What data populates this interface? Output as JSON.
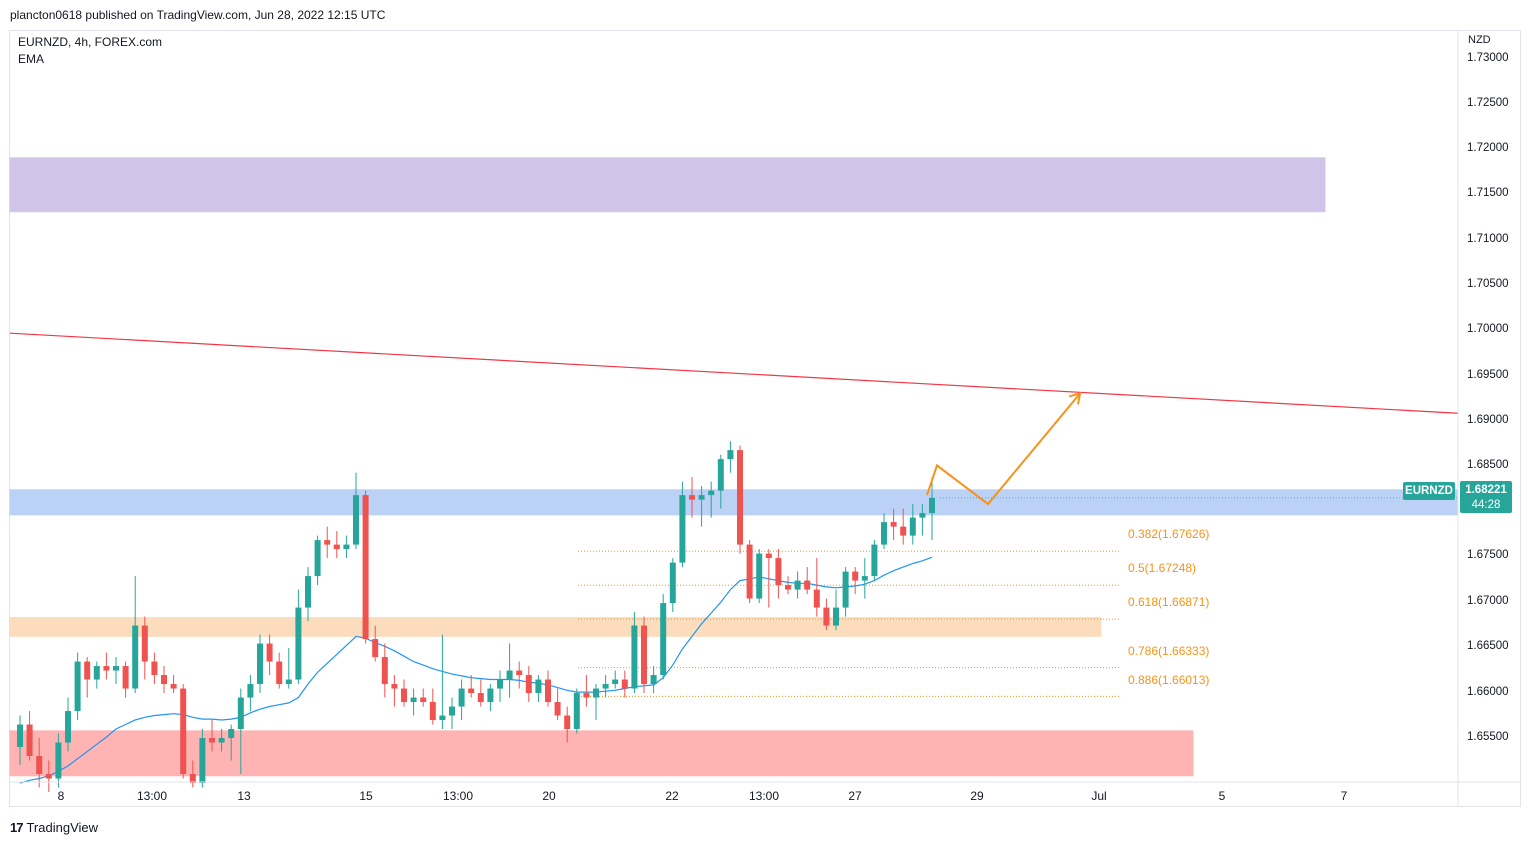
{
  "header": {
    "publisher_line": "plancton0618 published on TradingView.com, Jun 28, 2022 12:15 UTC"
  },
  "legend": {
    "symbol_line": "EURNZD, 4h, FOREX.com",
    "indicator": "EMA"
  },
  "price_axis": {
    "currency": "NZD",
    "ticks": [
      "1.73000",
      "1.72500",
      "1.72000",
      "1.71500",
      "1.71000",
      "1.70500",
      "1.70000",
      "1.69500",
      "1.69000",
      "1.68500",
      "1.67500",
      "1.67000",
      "1.66500",
      "1.66000",
      "1.65500"
    ]
  },
  "time_axis": {
    "ticks": [
      "8",
      "13:00",
      "13",
      "15",
      "13:00",
      "20",
      "22",
      "13:00",
      "27",
      "29",
      "Jul",
      "5",
      "7"
    ]
  },
  "current_price": {
    "symbol": "EURNZD",
    "price": "1.68221",
    "countdown": "44:28",
    "color": "#26a69a"
  },
  "fibonacci": {
    "color": "#f7931a",
    "labels": [
      "0.382(1.67626)",
      "0.5(1.67248)",
      "0.618(1.66871)",
      "0.786(1.66333)",
      "0.886(1.66013)"
    ]
  },
  "colors": {
    "bull": "#26a69a",
    "bear": "#ef5350",
    "ema": "#2196f3",
    "trendline": "#f23645",
    "projection": "#f7931a",
    "zone_purple": "#d1c4e9",
    "zone_blue": "#bbd1f5",
    "zone_orange": "#fbdcbc",
    "zone_red": "#ffb3b3"
  },
  "footer": {
    "brand": "TradingView"
  },
  "chart_data": {
    "type": "candlestick",
    "symbol": "EURNZD",
    "timeframe": "4h",
    "ylim": [
      1.6505,
      1.7312
    ],
    "grid": false,
    "series": [
      {
        "ohlc": [
          [
            1.6545,
            1.658,
            1.6525,
            1.657
          ],
          [
            1.657,
            1.6585,
            1.653,
            1.6535
          ],
          [
            1.6535,
            1.6555,
            1.65,
            1.6515
          ],
          [
            1.6515,
            1.653,
            1.6495,
            1.651
          ],
          [
            1.651,
            1.656,
            1.65,
            1.655
          ],
          [
            1.655,
            1.66,
            1.654,
            1.6585
          ],
          [
            1.6585,
            1.665,
            1.6575,
            1.664
          ],
          [
            1.664,
            1.6645,
            1.66,
            1.662
          ],
          [
            1.662,
            1.664,
            1.661,
            1.6635
          ],
          [
            1.6635,
            1.665,
            1.662,
            1.663
          ],
          [
            1.663,
            1.6645,
            1.6615,
            1.6635
          ],
          [
            1.6635,
            1.664,
            1.66,
            1.661
          ],
          [
            1.661,
            1.6735,
            1.6605,
            1.668
          ],
          [
            1.668,
            1.669,
            1.662,
            1.664
          ],
          [
            1.664,
            1.665,
            1.6615,
            1.6625
          ],
          [
            1.6625,
            1.6635,
            1.6605,
            1.6615
          ],
          [
            1.6615,
            1.6625,
            1.6605,
            1.661
          ],
          [
            1.661,
            1.6615,
            1.651,
            1.6515
          ],
          [
            1.6515,
            1.653,
            1.65,
            1.6505
          ],
          [
            1.6505,
            1.6565,
            1.65,
            1.6555
          ],
          [
            1.6555,
            1.6575,
            1.654,
            1.655
          ],
          [
            1.655,
            1.6565,
            1.654,
            1.6555
          ],
          [
            1.6555,
            1.657,
            1.653,
            1.6565
          ],
          [
            1.6565,
            1.661,
            1.6515,
            1.66
          ],
          [
            1.66,
            1.6625,
            1.6585,
            1.6615
          ],
          [
            1.6615,
            1.667,
            1.6605,
            1.666
          ],
          [
            1.666,
            1.667,
            1.6625,
            1.664
          ],
          [
            1.664,
            1.665,
            1.661,
            1.6615
          ],
          [
            1.6615,
            1.6655,
            1.661,
            1.662
          ],
          [
            1.662,
            1.672,
            1.6615,
            1.67
          ],
          [
            1.67,
            1.6745,
            1.6685,
            1.6735
          ],
          [
            1.6735,
            1.678,
            1.6725,
            1.6775
          ],
          [
            1.6775,
            1.679,
            1.6755,
            1.677
          ],
          [
            1.677,
            1.6785,
            1.6755,
            1.6765
          ],
          [
            1.6765,
            1.678,
            1.6755,
            1.677
          ],
          [
            1.677,
            1.685,
            1.6765,
            1.6825
          ],
          [
            1.6825,
            1.683,
            1.666,
            1.6665
          ],
          [
            1.6665,
            1.668,
            1.664,
            1.6645
          ],
          [
            1.6645,
            1.666,
            1.66,
            1.6615
          ],
          [
            1.6615,
            1.6625,
            1.659,
            1.661
          ],
          [
            1.661,
            1.662,
            1.659,
            1.6595
          ],
          [
            1.6595,
            1.661,
            1.658,
            1.66
          ],
          [
            1.66,
            1.661,
            1.659,
            1.6595
          ],
          [
            1.6595,
            1.661,
            1.657,
            1.6575
          ],
          [
            1.6575,
            1.667,
            1.6565,
            1.658
          ],
          [
            1.658,
            1.66,
            1.6565,
            1.659
          ],
          [
            1.659,
            1.662,
            1.6575,
            1.661
          ],
          [
            1.661,
            1.6625,
            1.66,
            1.6605
          ],
          [
            1.6605,
            1.662,
            1.659,
            1.6595
          ],
          [
            1.6595,
            1.6615,
            1.6585,
            1.661
          ],
          [
            1.661,
            1.663,
            1.6595,
            1.662
          ],
          [
            1.662,
            1.666,
            1.66,
            1.663
          ],
          [
            1.663,
            1.664,
            1.661,
            1.6625
          ],
          [
            1.6625,
            1.6635,
            1.6595,
            1.6605
          ],
          [
            1.6605,
            1.6625,
            1.6595,
            1.662
          ],
          [
            1.662,
            1.663,
            1.659,
            1.6595
          ],
          [
            1.6595,
            1.661,
            1.6575,
            1.658
          ],
          [
            1.658,
            1.659,
            1.655,
            1.6565
          ],
          [
            1.6565,
            1.661,
            1.656,
            1.6605
          ],
          [
            1.6605,
            1.6625,
            1.659,
            1.66
          ],
          [
            1.66,
            1.6615,
            1.6575,
            1.661
          ],
          [
            1.661,
            1.6625,
            1.66,
            1.6615
          ],
          [
            1.6615,
            1.663,
            1.661,
            1.662
          ],
          [
            1.662,
            1.663,
            1.66,
            1.661
          ],
          [
            1.661,
            1.6695,
            1.6605,
            1.668
          ],
          [
            1.668,
            1.669,
            1.6605,
            1.6615
          ],
          [
            1.6615,
            1.6635,
            1.6605,
            1.6625
          ],
          [
            1.6625,
            1.6715,
            1.662,
            1.6705
          ],
          [
            1.6705,
            1.6755,
            1.6695,
            1.675
          ],
          [
            1.675,
            1.684,
            1.6745,
            1.6825
          ],
          [
            1.6825,
            1.6845,
            1.68,
            1.682
          ],
          [
            1.682,
            1.6835,
            1.679,
            1.6825
          ],
          [
            1.6825,
            1.684,
            1.68,
            1.683
          ],
          [
            1.683,
            1.687,
            1.681,
            1.6865
          ],
          [
            1.6865,
            1.6885,
            1.685,
            1.6875
          ],
          [
            1.6875,
            1.688,
            1.676,
            1.677
          ],
          [
            1.677,
            1.6775,
            1.6705,
            1.671
          ],
          [
            1.671,
            1.6765,
            1.6705,
            1.676
          ],
          [
            1.676,
            1.6765,
            1.67,
            1.6755
          ],
          [
            1.6755,
            1.6765,
            1.671,
            1.6725
          ],
          [
            1.6725,
            1.6735,
            1.6715,
            1.672
          ],
          [
            1.672,
            1.674,
            1.671,
            1.673
          ],
          [
            1.673,
            1.6745,
            1.6715,
            1.672
          ],
          [
            1.672,
            1.6755,
            1.669,
            1.67
          ],
          [
            1.67,
            1.671,
            1.6675,
            1.668
          ],
          [
            1.668,
            1.672,
            1.6675,
            1.67
          ],
          [
            1.67,
            1.6745,
            1.669,
            1.674
          ],
          [
            1.674,
            1.6745,
            1.6715,
            1.673
          ],
          [
            1.673,
            1.6755,
            1.671,
            1.6735
          ],
          [
            1.6735,
            1.6775,
            1.673,
            1.677
          ],
          [
            1.677,
            1.6805,
            1.6765,
            1.6795
          ],
          [
            1.6795,
            1.681,
            1.6775,
            1.679
          ],
          [
            1.679,
            1.681,
            1.677,
            1.678
          ],
          [
            1.678,
            1.6815,
            1.677,
            1.68
          ],
          [
            1.68,
            1.6815,
            1.678,
            1.6805
          ],
          [
            1.6805,
            1.6845,
            1.6775,
            1.6822
          ]
        ]
      }
    ],
    "ema": [
      1.6505,
      1.6508,
      1.651,
      1.6513,
      1.6518,
      1.6524,
      1.6532,
      1.654,
      1.6548,
      1.6556,
      1.6565,
      1.657,
      1.6575,
      1.6578,
      1.658,
      1.6581,
      1.6582,
      1.6581,
      1.6578,
      1.6576,
      1.6576,
      1.6575,
      1.6576,
      1.6578,
      1.6583,
      1.6587,
      1.659,
      1.6592,
      1.6594,
      1.66,
      1.6615,
      1.6628,
      1.6638,
      1.6648,
      1.6658,
      1.6668,
      1.6666,
      1.6661,
      1.6657,
      1.6652,
      1.6646,
      1.664,
      1.6636,
      1.6632,
      1.6629,
      1.6626,
      1.6624,
      1.6622,
      1.6621,
      1.662,
      1.662,
      1.662,
      1.6619,
      1.6617,
      1.6616,
      1.6614,
      1.6611,
      1.6608,
      1.6606,
      1.6606,
      1.6606,
      1.6607,
      1.6608,
      1.661,
      1.6612,
      1.6613,
      1.6614,
      1.6622,
      1.6636,
      1.6654,
      1.6668,
      1.6682,
      1.6694,
      1.6706,
      1.672,
      1.673,
      1.6732,
      1.6734,
      1.6732,
      1.673,
      1.6728,
      1.6727,
      1.6727,
      1.6725,
      1.6723,
      1.6722,
      1.6723,
      1.6724,
      1.6726,
      1.673,
      1.6736,
      1.6741,
      1.6745,
      1.6749,
      1.6752,
      1.6756
    ],
    "zones": [
      {
        "from": 1.714,
        "to": 1.72,
        "color": "#d1c4e9"
      },
      {
        "from": 1.6803,
        "to": 1.6831,
        "color": "#bbd1f5"
      },
      {
        "from": 1.6668,
        "to": 1.6689,
        "color": "#fbdcbc"
      },
      {
        "from": 1.6513,
        "to": 1.6563,
        "color": "#ffb3b3"
      }
    ],
    "trendline": {
      "start": 1.7005,
      "end": 1.6916
    },
    "fib_levels": [
      1.67626,
      1.67248,
      1.66871,
      1.66333,
      1.66013
    ],
    "projection": [
      1.6825,
      1.6858,
      1.6815,
      1.6938
    ]
  }
}
